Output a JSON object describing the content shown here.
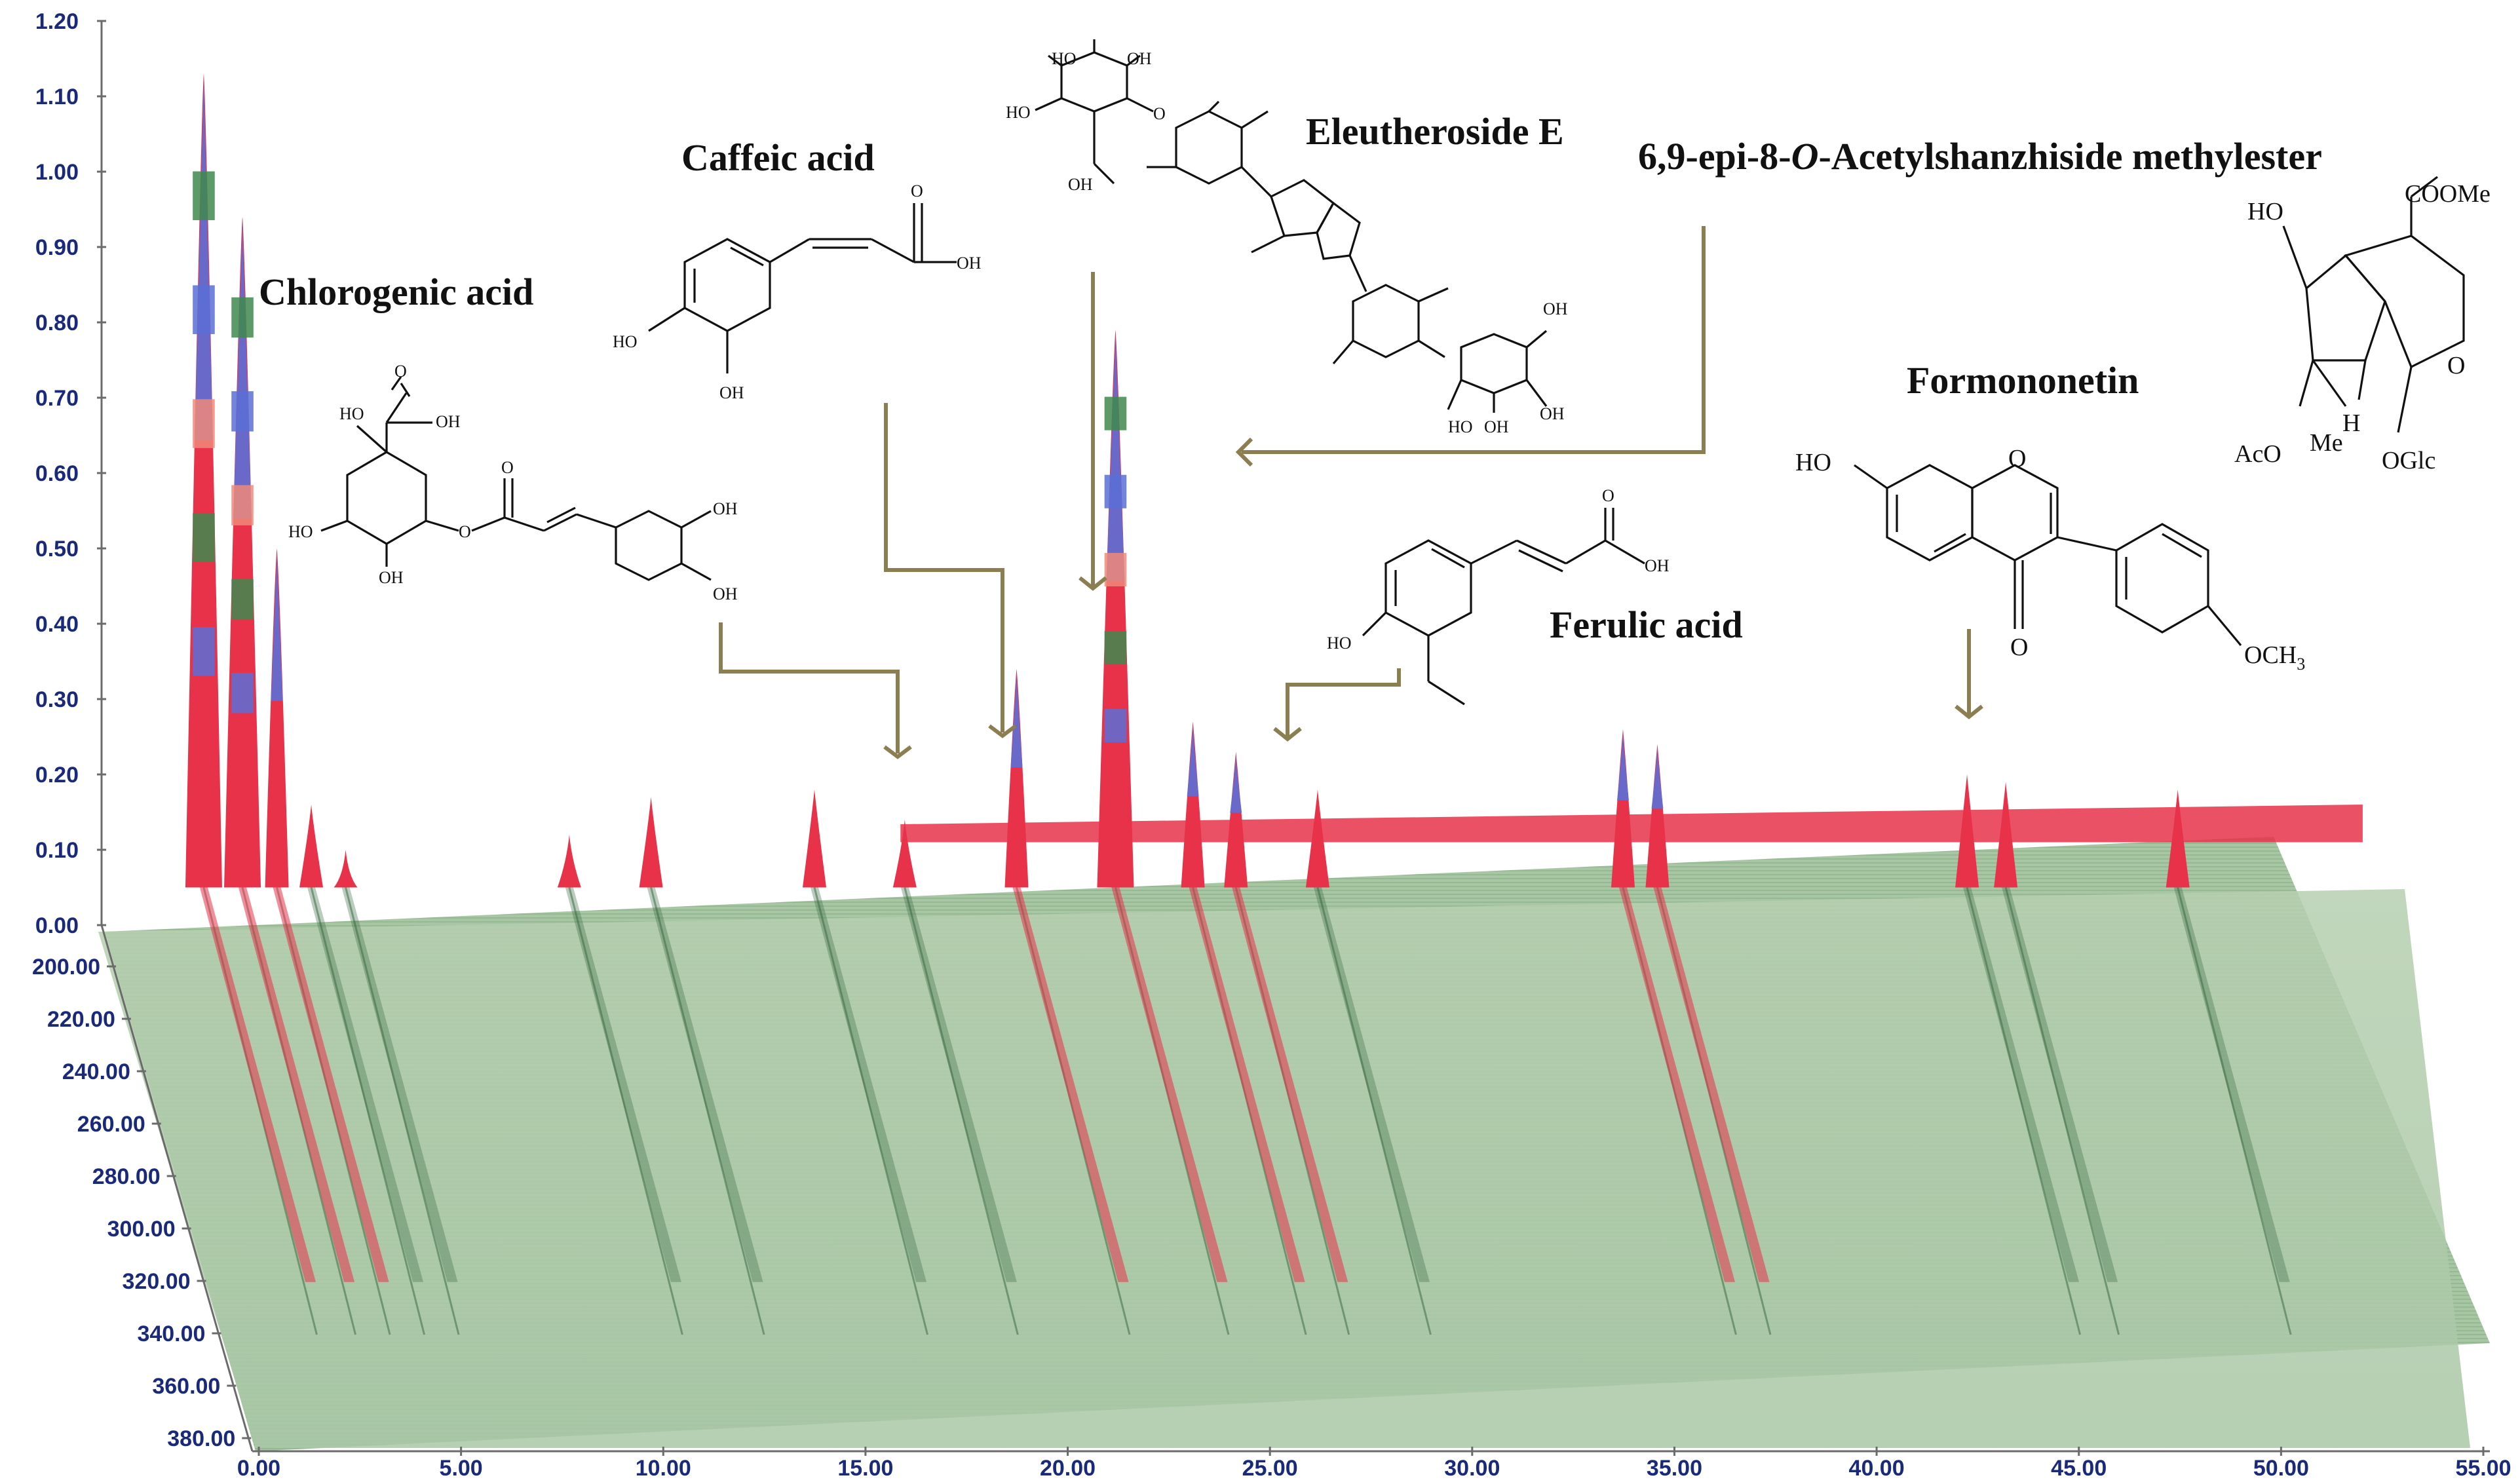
{
  "chart_data": {
    "type": "area",
    "subtype": "3d-waterfall",
    "title": "",
    "xlabel": "",
    "ylabel": "",
    "zlabel": "",
    "x_ticks": [
      "0.00",
      "5.00",
      "10.00",
      "15.00",
      "20.00",
      "25.00",
      "30.00",
      "35.00",
      "40.00",
      "45.00",
      "50.00",
      "55.00"
    ],
    "y_ticks": [
      "0.00",
      "0.10",
      "0.20",
      "0.30",
      "0.40",
      "0.50",
      "0.60",
      "0.70",
      "0.80",
      "0.90",
      "1.00",
      "1.10",
      "1.20"
    ],
    "z_ticks": [
      "200.00",
      "220.00",
      "240.00",
      "260.00",
      "280.00",
      "300.00",
      "320.00",
      "340.00",
      "360.00",
      "380.00"
    ],
    "xlim": [
      0,
      55
    ],
    "ylim": [
      0,
      1.2
    ],
    "zlim": [
      200,
      380
    ],
    "colors": {
      "base": "#9fc29a",
      "red": "#e8324a",
      "blue": "#5a6fd6",
      "green": "#3f8a4f",
      "salmon": "#f08a7a",
      "arrow": "#8b7f52"
    },
    "peaks": [
      {
        "t": 2.3,
        "a": 1.13
      },
      {
        "t": 3.2,
        "a": 0.94
      },
      {
        "t": 4.0,
        "a": 0.5
      },
      {
        "t": 4.8,
        "a": 0.16
      },
      {
        "t": 5.6,
        "a": 0.1
      },
      {
        "t": 10.8,
        "a": 0.12
      },
      {
        "t": 12.7,
        "a": 0.17
      },
      {
        "t": 16.5,
        "a": 0.18
      },
      {
        "t": 18.6,
        "a": 0.14
      },
      {
        "t": 21.2,
        "a": 0.34
      },
      {
        "t": 23.5,
        "a": 0.79
      },
      {
        "t": 25.3,
        "a": 0.27
      },
      {
        "t": 26.3,
        "a": 0.23
      },
      {
        "t": 28.2,
        "a": 0.18
      },
      {
        "t": 35.3,
        "a": 0.26
      },
      {
        "t": 36.1,
        "a": 0.24
      },
      {
        "t": 43.3,
        "a": 0.2
      },
      {
        "t": 44.2,
        "a": 0.19
      },
      {
        "t": 48.2,
        "a": 0.18
      }
    ],
    "plateau": {
      "start": 18.5,
      "end": 52.5,
      "level": 0.16
    }
  },
  "annotations": {
    "chlorogenic": "Chlorogenic acid",
    "caffeic": "Caffeic acid",
    "eleutheroside": "Eleutheroside E",
    "acetyl_pre": "6,9-epi-8-",
    "acetyl_o": "O",
    "acetyl_post": "-Acetylshanzhiside methylester",
    "ferulic": "Ferulic acid",
    "formononetin": "Formononetin"
  },
  "atoms": {
    "ho": "HO",
    "oh": "OH",
    "o": "O",
    "cooMe": "COOMe",
    "aco": "AcO",
    "me": "Me",
    "h": "H",
    "oglc": "OGlc",
    "och3": "OCH",
    "sub3": "3"
  }
}
